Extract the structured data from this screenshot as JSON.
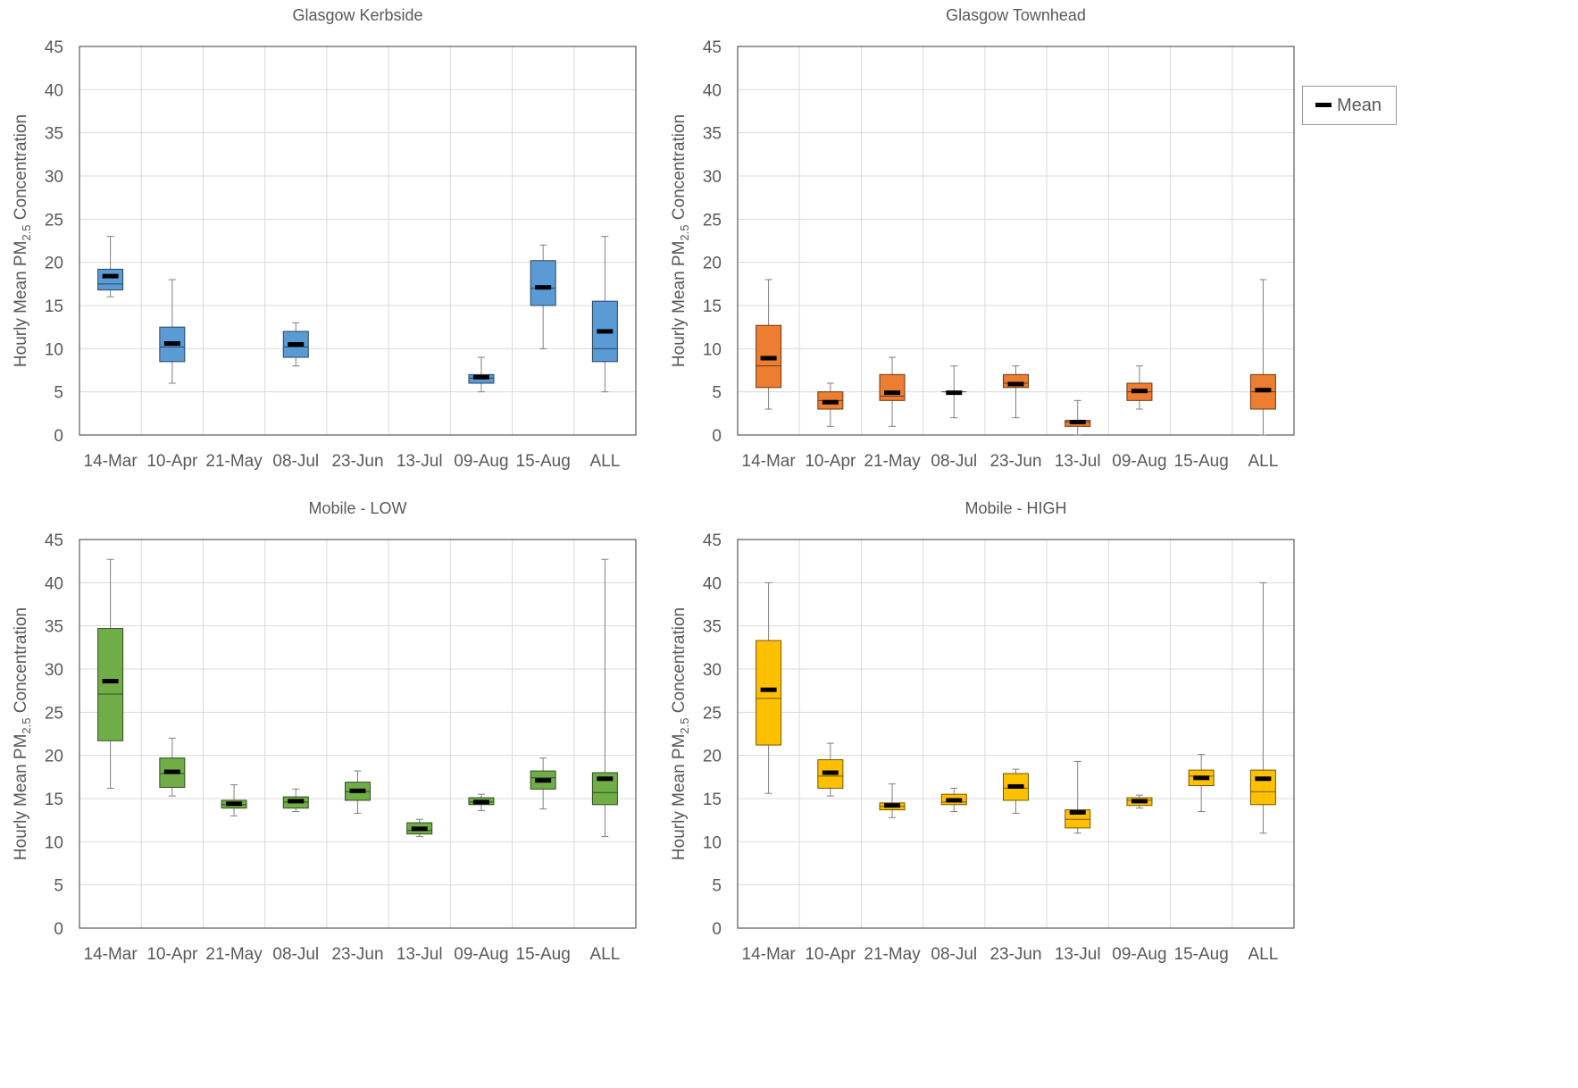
{
  "legend": {
    "label": "Mean",
    "mean_color": "#000000"
  },
  "y_axis_label": {
    "prefix": "Hourly Mean PM",
    "subscript": "2.5",
    "suffix": " Concentration"
  },
  "chart_data": [
    {
      "type": "box",
      "title": "Glasgow Kerbside",
      "color": "#5B9BD5",
      "show_ylabel": true,
      "ylim": [
        0,
        45
      ],
      "yticks": [
        0,
        5,
        10,
        15,
        20,
        25,
        30,
        35,
        40,
        45
      ],
      "grid": true,
      "categories": [
        "14-Mar",
        "10-Apr",
        "21-May",
        "08-Jul",
        "23-Jun",
        "13-Jul",
        "09-Aug",
        "15-Aug",
        "ALL"
      ],
      "boxes": [
        {
          "min": 16,
          "q1": 16.8,
          "median": 17.5,
          "q3": 19.2,
          "max": 23,
          "mean": 18.4
        },
        {
          "min": 6,
          "q1": 8.5,
          "median": 10.2,
          "q3": 12.5,
          "max": 18,
          "mean": 10.6
        },
        null,
        {
          "min": 8,
          "q1": 9,
          "median": 10.2,
          "q3": 12,
          "max": 13,
          "mean": 10.5
        },
        null,
        null,
        {
          "min": 5,
          "q1": 6,
          "median": 6.6,
          "q3": 7,
          "max": 9,
          "mean": 6.7
        },
        {
          "min": 10,
          "q1": 15,
          "median": 17,
          "q3": 20.2,
          "max": 22,
          "mean": 17.1
        },
        {
          "min": 5,
          "q1": 8.5,
          "median": 10,
          "q3": 15.5,
          "max": 23,
          "mean": 12
        }
      ]
    },
    {
      "type": "box",
      "title": "Glasgow Townhead",
      "color": "#ED7D31",
      "show_ylabel": true,
      "ylim": [
        0,
        45
      ],
      "yticks": [
        0,
        5,
        10,
        15,
        20,
        25,
        30,
        35,
        40,
        45
      ],
      "grid": true,
      "categories": [
        "14-Mar",
        "10-Apr",
        "21-May",
        "08-Jul",
        "23-Jun",
        "13-Jul",
        "09-Aug",
        "15-Aug",
        "ALL"
      ],
      "boxes": [
        {
          "min": 3,
          "q1": 5.5,
          "median": 8,
          "q3": 12.7,
          "max": 18,
          "mean": 8.9
        },
        {
          "min": 1,
          "q1": 3,
          "median": 4,
          "q3": 5,
          "max": 6,
          "mean": 3.8
        },
        {
          "min": 1,
          "q1": 4,
          "median": 4.5,
          "q3": 7,
          "max": 9,
          "mean": 4.9
        },
        {
          "min": 2,
          "q1": 5,
          "median": 5,
          "q3": 5,
          "max": 8,
          "mean": 4.9
        },
        {
          "min": 2,
          "q1": 5.5,
          "median": 6,
          "q3": 7,
          "max": 8,
          "mean": 5.9
        },
        {
          "min": 0,
          "q1": 1,
          "median": 1.5,
          "q3": 1.7,
          "max": 4,
          "mean": 1.5
        },
        {
          "min": 3,
          "q1": 4,
          "median": 5,
          "q3": 6,
          "max": 8,
          "mean": 5.1
        },
        null,
        {
          "min": 0,
          "q1": 3,
          "median": 5,
          "q3": 7,
          "max": 18,
          "mean": 5.2
        }
      ]
    },
    {
      "type": "box",
      "title": "Mobile - LOW",
      "color": "#70AD47",
      "show_ylabel": true,
      "ylim": [
        0,
        45
      ],
      "yticks": [
        0,
        5,
        10,
        15,
        20,
        25,
        30,
        35,
        40,
        45
      ],
      "grid": true,
      "categories": [
        "14-Mar",
        "10-Apr",
        "21-May",
        "08-Jul",
        "23-Jun",
        "13-Jul",
        "09-Aug",
        "15-Aug",
        "ALL"
      ],
      "boxes": [
        {
          "min": 16.2,
          "q1": 21.7,
          "median": 27.1,
          "q3": 34.7,
          "max": 42.7,
          "mean": 28.6
        },
        {
          "min": 15.3,
          "q1": 16.3,
          "median": 17.9,
          "q3": 19.7,
          "max": 22,
          "mean": 18.1
        },
        {
          "min": 13,
          "q1": 13.9,
          "median": 14.3,
          "q3": 14.8,
          "max": 16.6,
          "mean": 14.4
        },
        {
          "min": 13.5,
          "q1": 13.9,
          "median": 14.6,
          "q3": 15.2,
          "max": 16.1,
          "mean": 14.7
        },
        {
          "min": 13.3,
          "q1": 14.8,
          "median": 15.8,
          "q3": 16.9,
          "max": 18.2,
          "mean": 15.9
        },
        {
          "min": 10.6,
          "q1": 10.9,
          "median": 11.3,
          "q3": 12.2,
          "max": 12.6,
          "mean": 11.5
        },
        {
          "min": 13.6,
          "q1": 14.3,
          "median": 14.6,
          "q3": 15.1,
          "max": 15.5,
          "mean": 14.6
        },
        {
          "min": 13.8,
          "q1": 16.1,
          "median": 17.4,
          "q3": 18.2,
          "max": 19.7,
          "mean": 17.1
        },
        {
          "min": 10.6,
          "q1": 14.3,
          "median": 15.7,
          "q3": 18,
          "max": 42.7,
          "mean": 17.3
        }
      ]
    },
    {
      "type": "box",
      "title": "Mobile - HIGH",
      "color": "#FFC000",
      "show_ylabel": true,
      "ylim": [
        0,
        45
      ],
      "yticks": [
        0,
        5,
        10,
        15,
        20,
        25,
        30,
        35,
        40,
        45
      ],
      "grid": true,
      "categories": [
        "14-Mar",
        "10-Apr",
        "21-May",
        "08-Jul",
        "23-Jun",
        "13-Jul",
        "09-Aug",
        "15-Aug",
        "ALL"
      ],
      "boxes": [
        {
          "min": 15.6,
          "q1": 21.2,
          "median": 26.6,
          "q3": 33.3,
          "max": 40,
          "mean": 27.6
        },
        {
          "min": 15.3,
          "q1": 16.2,
          "median": 17.6,
          "q3": 19.5,
          "max": 21.4,
          "mean": 18
        },
        {
          "min": 12.8,
          "q1": 13.7,
          "median": 14.1,
          "q3": 14.5,
          "max": 16.7,
          "mean": 14.2
        },
        {
          "min": 13.5,
          "q1": 14.3,
          "median": 14.6,
          "q3": 15.5,
          "max": 16.2,
          "mean": 14.8
        },
        {
          "min": 13.3,
          "q1": 14.8,
          "median": 16.2,
          "q3": 17.9,
          "max": 18.4,
          "mean": 16.4
        },
        {
          "min": 11,
          "q1": 11.6,
          "median": 12.6,
          "q3": 13.7,
          "max": 19.3,
          "mean": 13.4
        },
        {
          "min": 13.9,
          "q1": 14.2,
          "median": 14.8,
          "q3": 15.1,
          "max": 15.4,
          "mean": 14.7
        },
        {
          "min": 13.5,
          "q1": 16.5,
          "median": 17.6,
          "q3": 18.3,
          "max": 20.1,
          "mean": 17.4
        },
        {
          "min": 11,
          "q1": 14.3,
          "median": 15.8,
          "q3": 18.3,
          "max": 40,
          "mean": 17.3
        }
      ]
    }
  ]
}
